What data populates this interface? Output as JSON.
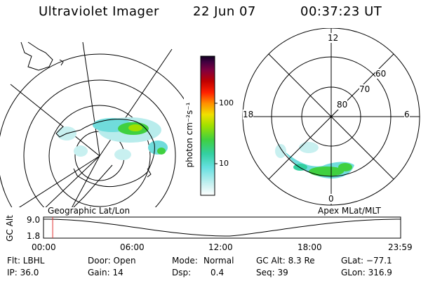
{
  "header": {
    "instrument": "Ultraviolet Imager",
    "date": "22 Jun 07",
    "time": "00:37:23 UT"
  },
  "left_map": {
    "caption": "Geographic Lat/Lon"
  },
  "colorbar": {
    "label": "photon cm⁻²s⁻¹",
    "ticks": [
      "100",
      "10"
    ],
    "scale": "log",
    "colors": [
      "#ffffff",
      "#c8f0f0",
      "#66e0e0",
      "#33d0a0",
      "#40d040",
      "#a0e000",
      "#f0e000",
      "#ff9000",
      "#ff2000",
      "#c00000",
      "#800040",
      "#400040",
      "#100020"
    ]
  },
  "right_map": {
    "caption": "Apex MLat/MLT",
    "mlt_labels": {
      "top": "12",
      "left": "18",
      "right": "6",
      "bottom": "0"
    },
    "lat_labels": [
      "60",
      "70",
      "80"
    ]
  },
  "timeline": {
    "ylabel": "GC Alt",
    "yticks": [
      "9.0",
      "1.8"
    ],
    "xticks": [
      "00:00",
      "06:00",
      "12:00",
      "18:00",
      "23:59"
    ],
    "series": [
      {
        "x": "00:00",
        "y": 9.0
      },
      {
        "x": "12:30",
        "y": 1.8
      },
      {
        "x": "23:59",
        "y": 9.0
      }
    ],
    "current_time": "00:37",
    "marker_color": "#e03030"
  },
  "info": {
    "flt": "Flt: LBHL",
    "ip": "IP: 36.0",
    "door": "Door: Open",
    "gain": "Gain: 14",
    "mode_label": "Mode:",
    "mode_value": "Normal",
    "dsp_label": "Dsp:",
    "dsp_value": "0.4",
    "gcalt": "GC Alt: 8.3 Re",
    "seq": "Seq: 39",
    "glat": "GLat: −77.1",
    "glon": "GLon: 316.9"
  }
}
